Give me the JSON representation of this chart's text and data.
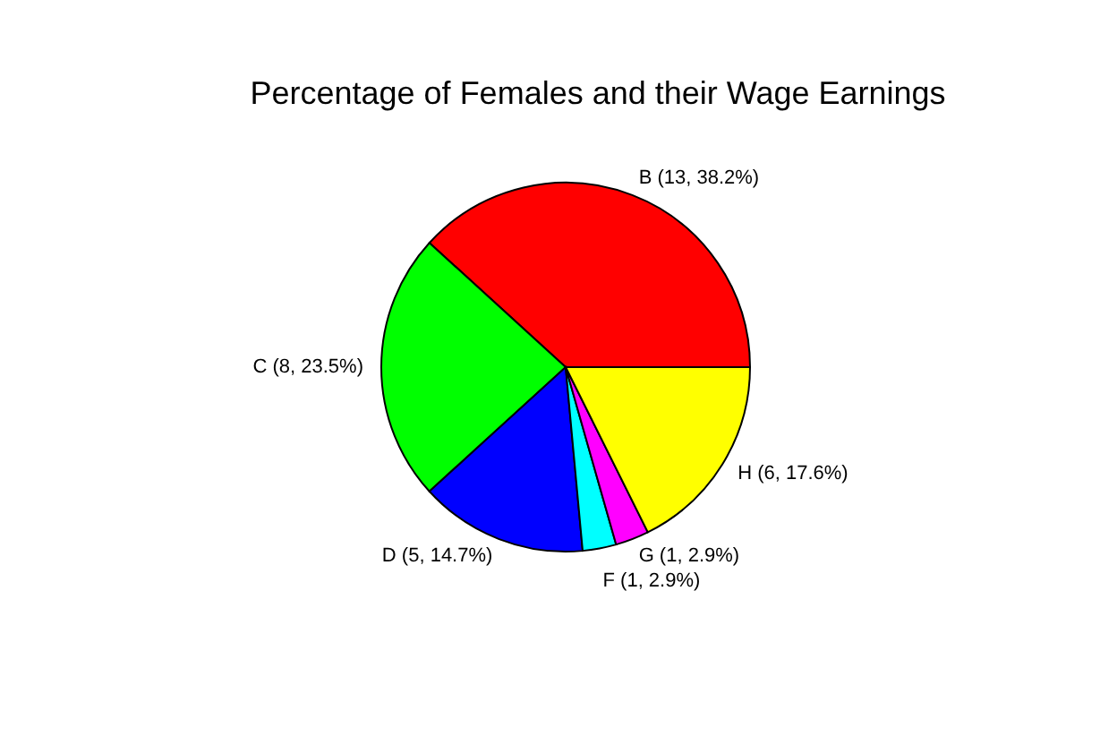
{
  "chart_data": {
    "type": "pie",
    "title": "Percentage of Females and their Wage Earnings",
    "categories": [
      "B (13, 38.2%)",
      "C (8, 23.5%)",
      "D (5, 14.7%)",
      "F (1,  2.9%)",
      "G (1,  2.9%)",
      "H (6, 17.6%)"
    ],
    "values": [
      13,
      8,
      5,
      1,
      1,
      6
    ],
    "colors": [
      "#ff0000",
      "#00ff00",
      "#0000ff",
      "#00ffff",
      "#ff00ff",
      "#ffff00"
    ],
    "legend": false
  }
}
